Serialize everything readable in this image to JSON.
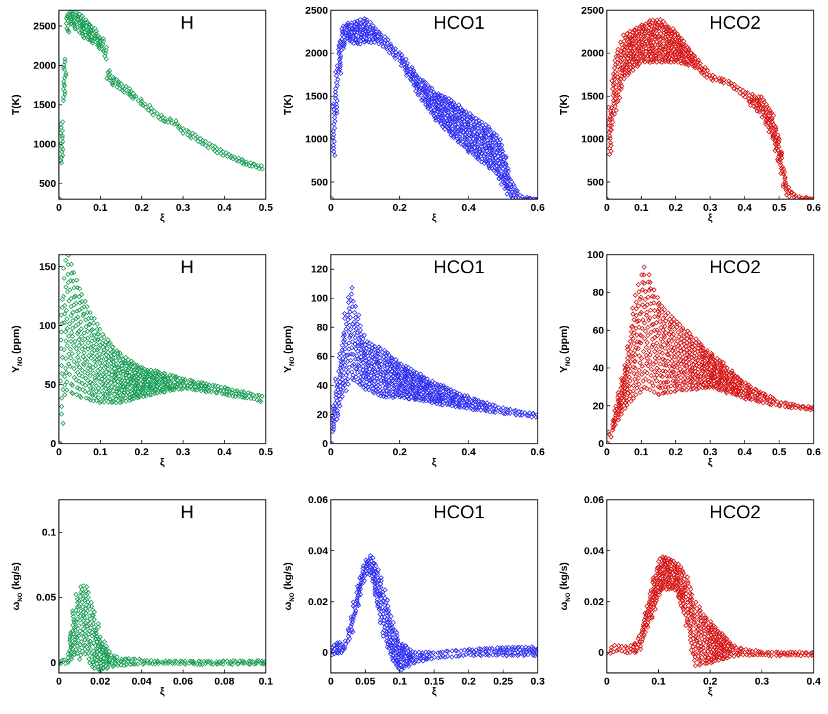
{
  "chart_data": [
    {
      "id": "T-H",
      "type": "scatter",
      "title": "H",
      "xlabel": "ξ",
      "ylabel": "T(K)",
      "color": "#1a9e55",
      "xlim": [
        0,
        0.5
      ],
      "ylim": [
        300,
        2700
      ],
      "xticks": [
        0,
        0.1,
        0.2,
        0.3,
        0.4,
        0.5
      ],
      "xtick_labels": [
        "0",
        "0.1",
        "0.2",
        "0.3",
        "0.4",
        "0.5"
      ],
      "yticks": [
        500,
        1000,
        1500,
        2000,
        2500
      ],
      "ytick_labels": [
        "500",
        "1000",
        "1500",
        "2000",
        "2500"
      ],
      "bands": [
        {
          "x": [
            0,
            0.005,
            0.01,
            0.02,
            0.03,
            0.05,
            0.08,
            0.11,
            0.12,
            0.15,
            0.2,
            0.25,
            0.28,
            0.3,
            0.35,
            0.4,
            0.45,
            0.49
          ],
          "ylo": [
            300,
            600,
            1000,
            2400,
            2550,
            2400,
            2300,
            2150,
            1800,
            1700,
            1500,
            1300,
            1250,
            1150,
            1000,
            850,
            750,
            680
          ],
          "yhi": [
            300,
            1000,
            1700,
            2650,
            2700,
            2650,
            2500,
            2300,
            1900,
            1780,
            1560,
            1340,
            1300,
            1200,
            1050,
            900,
            790,
            720
          ]
        }
      ]
    },
    {
      "id": "T-HCO1",
      "type": "scatter",
      "title": "HCO1",
      "xlabel": "ξ",
      "ylabel": "T(K)",
      "color": "#2f2ff2",
      "xlim": [
        0,
        0.6
      ],
      "ylim": [
        300,
        2500
      ],
      "xticks": [
        0,
        0.2,
        0.4,
        0.6
      ],
      "xtick_labels": [
        "0",
        "0.2",
        "0.4",
        "0.6"
      ],
      "yticks": [
        500,
        1000,
        1500,
        2000,
        2500
      ],
      "ytick_labels": [
        "500",
        "1000",
        "1500",
        "2000",
        "2500"
      ],
      "bands": [
        {
          "x": [
            0,
            0.01,
            0.03,
            0.05,
            0.08,
            0.1,
            0.15,
            0.2,
            0.25,
            0.3,
            0.35,
            0.4,
            0.45,
            0.48,
            0.5,
            0.52,
            0.55,
            0.6
          ],
          "ylo": [
            300,
            900,
            2000,
            2150,
            2100,
            2150,
            2100,
            1900,
            1550,
            1250,
            1050,
            850,
            700,
            600,
            450,
            330,
            300,
            300
          ],
          "yhi": [
            300,
            1600,
            2300,
            2350,
            2380,
            2400,
            2200,
            2000,
            1750,
            1550,
            1450,
            1300,
            1150,
            1050,
            900,
            550,
            330,
            300
          ]
        }
      ]
    },
    {
      "id": "T-HCO2",
      "type": "scatter",
      "title": "HCO2",
      "xlabel": "ξ",
      "ylabel": "T(K)",
      "color": "#d61414",
      "xlim": [
        0,
        0.6
      ],
      "ylim": [
        300,
        2500
      ],
      "xticks": [
        0,
        0.1,
        0.2,
        0.3,
        0.4,
        0.5,
        0.6
      ],
      "xtick_labels": [
        "0",
        "0.1",
        "0.2",
        "0.3",
        "0.4",
        "0.5",
        "0.6"
      ],
      "yticks": [
        500,
        1000,
        1500,
        2000,
        2500
      ],
      "ytick_labels": [
        "500",
        "1000",
        "1500",
        "2000",
        "2500"
      ],
      "bands": [
        {
          "x": [
            0,
            0.005,
            0.02,
            0.05,
            0.1,
            0.15,
            0.2,
            0.25,
            0.3,
            0.35,
            0.4,
            0.43,
            0.45,
            0.48,
            0.5,
            0.52,
            0.55,
            0.6
          ],
          "ylo": [
            300,
            700,
            1200,
            1700,
            1900,
            1900,
            1900,
            1850,
            1700,
            1650,
            1500,
            1350,
            1300,
            1000,
            700,
            350,
            300,
            300
          ],
          "yhi": [
            300,
            1200,
            1900,
            2200,
            2330,
            2400,
            2250,
            2000,
            1750,
            1680,
            1550,
            1500,
            1480,
            1300,
            1000,
            500,
            330,
            300
          ]
        }
      ]
    },
    {
      "id": "Y-H",
      "type": "scatter",
      "title": "H",
      "xlabel": "ξ",
      "ylabel": "Y_NO (ppm)",
      "color": "#1a9e55",
      "xlim": [
        0,
        0.5
      ],
      "ylim": [
        0,
        160
      ],
      "xticks": [
        0,
        0.1,
        0.2,
        0.3,
        0.4,
        0.5
      ],
      "xtick_labels": [
        "0",
        "0.1",
        "0.2",
        "0.3",
        "0.4",
        "0.5"
      ],
      "yticks": [
        0,
        50,
        100,
        150
      ],
      "ytick_labels": [
        "0",
        "50",
        "100",
        "150"
      ],
      "bands": [
        {
          "x": [
            0,
            0.008,
            0.015,
            0.02,
            0.05,
            0.1,
            0.15,
            0.2,
            0.3,
            0.4,
            0.49
          ],
          "ylo": [
            0,
            20,
            45,
            45,
            40,
            35,
            35,
            40,
            47,
            42,
            36
          ],
          "yhi": [
            0,
            140,
            158,
            160,
            130,
            95,
            75,
            64,
            55,
            47,
            40
          ]
        }
      ]
    },
    {
      "id": "Y-HCO1",
      "type": "scatter",
      "title": "HCO1",
      "xlabel": "ξ",
      "ylabel": "Y_NO (ppm)",
      "color": "#2f2ff2",
      "xlim": [
        0,
        0.6
      ],
      "ylim": [
        0,
        130
      ],
      "xticks": [
        0,
        0.2,
        0.4,
        0.6
      ],
      "xtick_labels": [
        "0",
        "0.2",
        "0.4",
        "0.6"
      ],
      "yticks": [
        0,
        20,
        40,
        60,
        80,
        100,
        120
      ],
      "ytick_labels": [
        "0",
        "20",
        "40",
        "60",
        "80",
        "100",
        "120"
      ],
      "bands": [
        {
          "x": [
            0,
            0.01,
            0.03,
            0.05,
            0.06,
            0.08,
            0.1,
            0.15,
            0.2,
            0.3,
            0.4,
            0.5,
            0.6
          ],
          "ylo": [
            0,
            10,
            30,
            40,
            45,
            42,
            38,
            32,
            32,
            28,
            24,
            21,
            18
          ],
          "yhi": [
            0,
            30,
            70,
            100,
            107,
            85,
            70,
            65,
            55,
            42,
            32,
            24,
            20
          ]
        }
      ]
    },
    {
      "id": "Y-HCO2",
      "type": "scatter",
      "title": "HCO2",
      "xlabel": "ξ",
      "ylabel": "Y_NO (ppm)",
      "color": "#d61414",
      "xlim": [
        0,
        0.6
      ],
      "ylim": [
        0,
        100
      ],
      "xticks": [
        0,
        0.1,
        0.2,
        0.3,
        0.4,
        0.5,
        0.6
      ],
      "xtick_labels": [
        "0",
        "0.1",
        "0.2",
        "0.3",
        "0.4",
        "0.5",
        "0.6"
      ],
      "yticks": [
        0,
        20,
        40,
        60,
        80,
        100
      ],
      "ytick_labels": [
        "0",
        "20",
        "40",
        "60",
        "80",
        "100"
      ],
      "bands": [
        {
          "x": [
            0,
            0.02,
            0.05,
            0.08,
            0.11,
            0.13,
            0.15,
            0.2,
            0.3,
            0.4,
            0.5,
            0.6
          ],
          "ylo": [
            0,
            8,
            18,
            25,
            30,
            28,
            26,
            28,
            30,
            24,
            20,
            18
          ],
          "yhi": [
            0,
            15,
            40,
            75,
            94,
            85,
            75,
            65,
            48,
            32,
            22,
            19
          ]
        }
      ]
    },
    {
      "id": "W-H",
      "type": "scatter",
      "title": "H",
      "xlabel": "ξ",
      "ylabel": "ω_NO (kg/s)",
      "color": "#1a9e55",
      "xlim": [
        0,
        0.1
      ],
      "ylim": [
        -0.008,
        0.125
      ],
      "xticks": [
        0,
        0.02,
        0.04,
        0.06,
        0.08,
        0.1
      ],
      "xtick_labels": [
        "0",
        "0.02",
        "0.04",
        "0.06",
        "0.08",
        "0.1"
      ],
      "yticks": [
        0,
        0.05,
        0.1
      ],
      "ytick_labels": [
        "0",
        "0.05",
        "0.1"
      ],
      "bands": [
        {
          "x": [
            0,
            0.004,
            0.008,
            0.01,
            0.012,
            0.014,
            0.017,
            0.02,
            0.025,
            0.03,
            0.04,
            0.05,
            0.1
          ],
          "ylo": [
            -0.001,
            -0.001,
            0.008,
            0.002,
            0.012,
            0.0,
            -0.005,
            -0.006,
            -0.003,
            -0.002,
            -0.001,
            -0.001,
            -0.001
          ],
          "yhi": [
            0.001,
            0.003,
            0.05,
            0.058,
            0.06,
            0.055,
            0.04,
            0.02,
            0.006,
            0.003,
            0.002,
            0.001,
            0.001
          ]
        }
      ]
    },
    {
      "id": "W-HCO1",
      "type": "scatter",
      "title": "HCO1",
      "xlabel": "ξ",
      "ylabel": "ω_NO (kg/s)",
      "color": "#2f2ff2",
      "xlim": [
        0,
        0.3
      ],
      "ylim": [
        -0.008,
        0.06
      ],
      "xticks": [
        0,
        0.05,
        0.1,
        0.15,
        0.2,
        0.25,
        0.3
      ],
      "xtick_labels": [
        "0",
        "0.05",
        "0.1",
        "0.15",
        "0.2",
        "0.25",
        "0.3"
      ],
      "yticks": [
        0,
        0.02,
        0.04,
        0.06
      ],
      "ytick_labels": [
        "0",
        "0.02",
        "0.04",
        "0.06"
      ],
      "bands": [
        {
          "x": [
            0,
            0.01,
            0.02,
            0.03,
            0.04,
            0.05,
            0.055,
            0.06,
            0.07,
            0.08,
            0.09,
            0.1,
            0.12,
            0.15,
            0.2,
            0.25,
            0.3
          ],
          "ylo": [
            -0.001,
            0.0,
            0.0,
            0.008,
            0.02,
            0.03,
            0.031,
            0.028,
            0.015,
            0.003,
            -0.003,
            -0.007,
            -0.004,
            -0.002,
            -0.001,
            -0.001,
            -0.001
          ],
          "yhi": [
            0.002,
            0.004,
            0.003,
            0.014,
            0.028,
            0.036,
            0.038,
            0.037,
            0.032,
            0.022,
            0.012,
            0.004,
            0.0,
            0.0,
            0.001,
            0.002,
            0.002
          ]
        }
      ]
    },
    {
      "id": "W-HCO2",
      "type": "scatter",
      "title": "HCO2",
      "xlabel": "ξ",
      "ylabel": "ω_NO (kg/s)",
      "color": "#d61414",
      "xlim": [
        0,
        0.4
      ],
      "ylim": [
        -0.008,
        0.06
      ],
      "xticks": [
        0,
        0.1,
        0.2,
        0.3,
        0.4
      ],
      "xtick_labels": [
        "0",
        "0.1",
        "0.2",
        "0.3",
        "0.4"
      ],
      "yticks": [
        0,
        0.02,
        0.04,
        0.06
      ],
      "ytick_labels": [
        "0",
        "0.02",
        "0.04",
        "0.06"
      ],
      "bands": [
        {
          "x": [
            0,
            0.02,
            0.04,
            0.06,
            0.08,
            0.1,
            0.11,
            0.13,
            0.15,
            0.17,
            0.2,
            0.25,
            0.3,
            0.4
          ],
          "ylo": [
            -0.001,
            0.001,
            0.0,
            0.0,
            0.01,
            0.022,
            0.025,
            0.025,
            0.015,
            -0.005,
            -0.004,
            -0.001,
            -0.001,
            -0.001
          ],
          "yhi": [
            0.0,
            0.003,
            0.002,
            0.004,
            0.02,
            0.036,
            0.038,
            0.036,
            0.032,
            0.02,
            0.012,
            0.002,
            0.0,
            0.0
          ]
        }
      ]
    }
  ]
}
